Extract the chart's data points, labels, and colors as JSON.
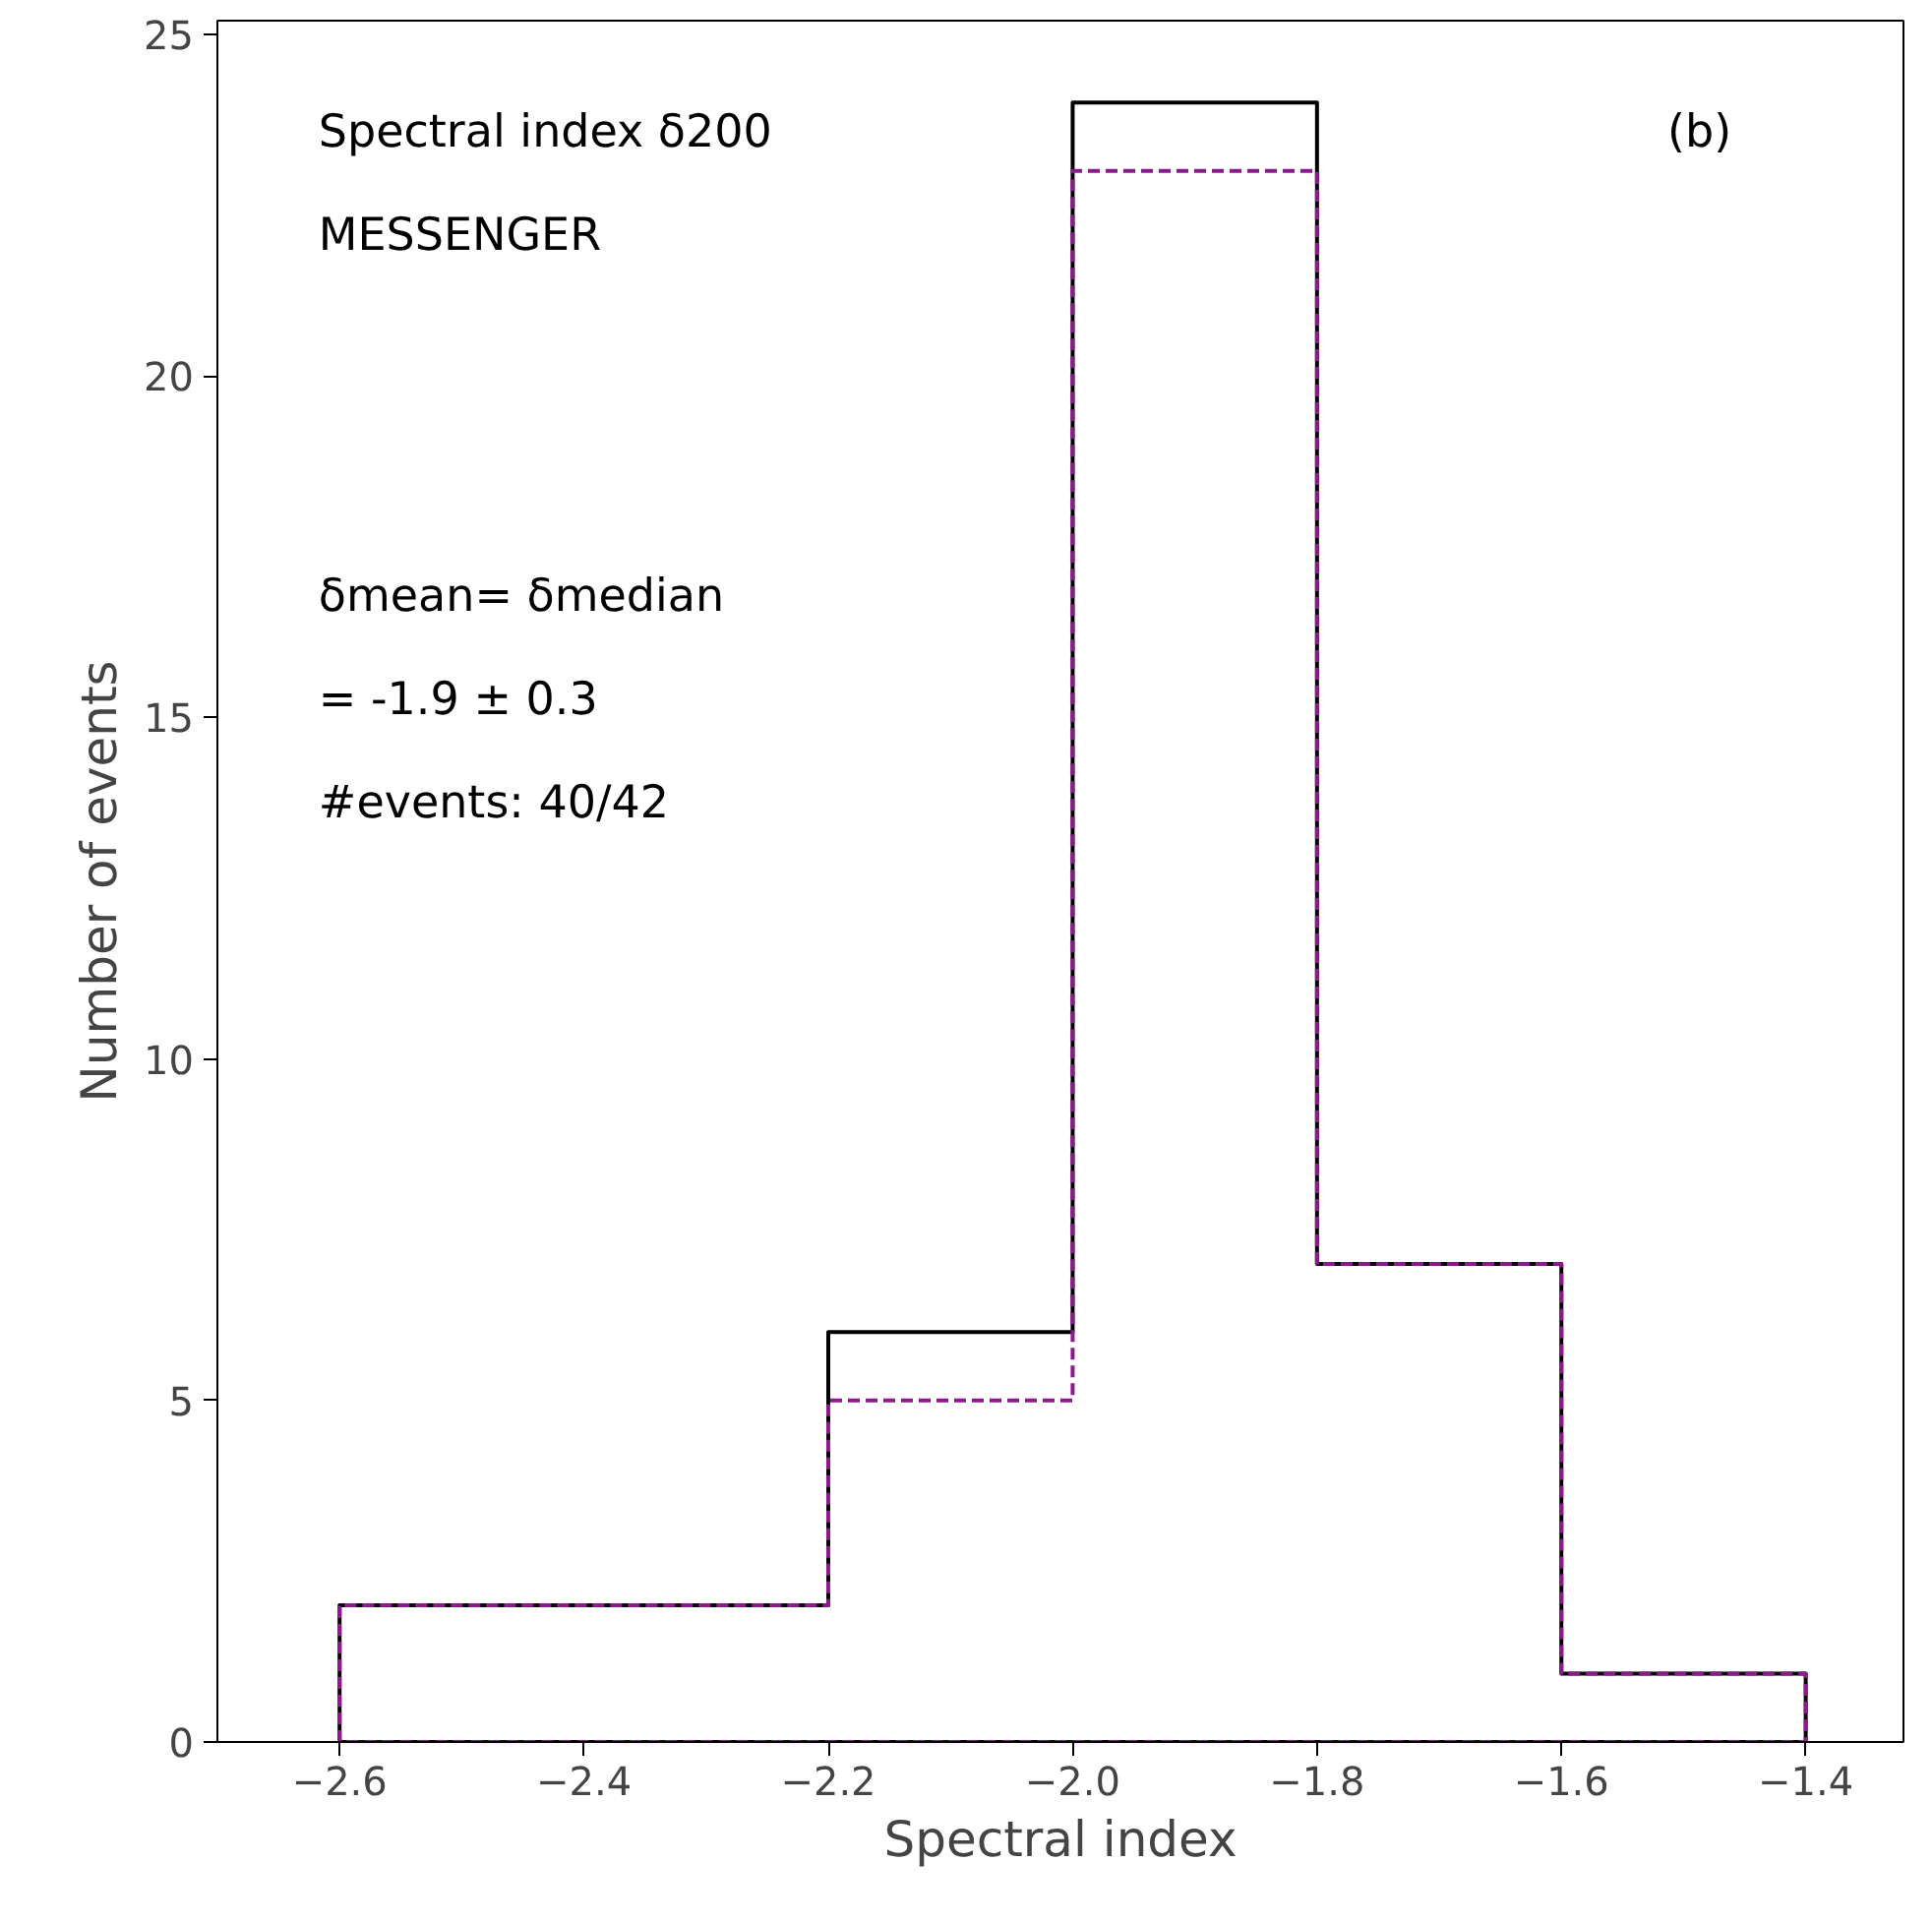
{
  "chart_data": {
    "type": "histogram",
    "xlabel": "Spectral index",
    "ylabel": "Number of events",
    "bins": [
      -2.6,
      -2.4,
      -2.2,
      -2.0,
      -1.8,
      -1.6,
      -1.4
    ],
    "series": [
      {
        "color": "#000000",
        "line_style": "solid",
        "values": [
          2,
          2,
          6,
          24,
          7,
          1
        ]
      },
      {
        "color": "#8b1a8b",
        "line_style": "dashed",
        "values": [
          2,
          2,
          5,
          23,
          7,
          1
        ]
      }
    ],
    "xlim": [
      -2.7,
      -1.32
    ],
    "ylim": [
      0,
      25.2
    ],
    "xticks": [
      {
        "value": -2.6,
        "label": "−2.6"
      },
      {
        "value": -2.4,
        "label": "−2.4"
      },
      {
        "value": -2.2,
        "label": "−2.2"
      },
      {
        "value": -2.0,
        "label": "−2.0"
      },
      {
        "value": -1.8,
        "label": "−1.8"
      },
      {
        "value": -1.6,
        "label": "−1.6"
      },
      {
        "value": -1.4,
        "label": "−1.4"
      }
    ],
    "yticks": [
      0,
      5,
      10,
      15,
      20,
      25
    ],
    "annotations": [
      "Spectral index δ200",
      "MESSENGER",
      "(b)",
      "δmean= δmedian",
      "= -1.9 ± 0.3",
      "#events: 40/42"
    ],
    "grid": false
  }
}
